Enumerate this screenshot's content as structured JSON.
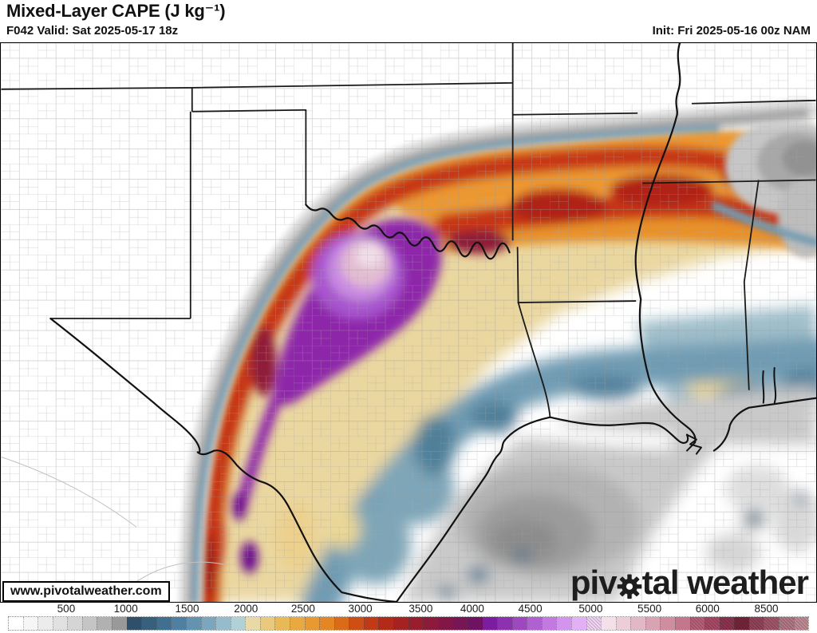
{
  "header": {
    "title": "Mixed-Layer CAPE (J kg⁻¹)",
    "valid": "F042 Valid: Sat 2025-05-17 18z",
    "init": "Init: Fri 2025-05-16 00z NAM"
  },
  "map": {
    "watermark": "www.pivotalweather.com",
    "logo_pre": "piv",
    "logo_post": "tal weather"
  },
  "colorbar": {
    "unit": "J kg⁻¹",
    "ticks": [
      {
        "label": "500",
        "pos": 8.1
      },
      {
        "label": "1000",
        "pos": 15.4
      },
      {
        "label": "1500",
        "pos": 22.9
      },
      {
        "label": "2000",
        "pos": 30.1
      },
      {
        "label": "2500",
        "pos": 37.1
      },
      {
        "label": "3000",
        "pos": 44.1
      },
      {
        "label": "3500",
        "pos": 51.5
      },
      {
        "label": "4000",
        "pos": 57.8
      },
      {
        "label": "4500",
        "pos": 64.9
      },
      {
        "label": "5000",
        "pos": 72.3
      },
      {
        "label": "5500",
        "pos": 79.5
      },
      {
        "label": "6000",
        "pos": 86.6
      },
      {
        "label": "8500",
        "pos": 93.8
      }
    ],
    "segments": [
      {
        "c": "#ffffff",
        "h": 0
      },
      {
        "c": "#f6f6f6",
        "h": 0
      },
      {
        "c": "#ececec",
        "h": 0
      },
      {
        "c": "#e1e1e1",
        "h": 0
      },
      {
        "c": "#d5d5d5",
        "h": 0
      },
      {
        "c": "#c5c5c5",
        "h": 0
      },
      {
        "c": "#b1b1b1",
        "h": 0
      },
      {
        "c": "#999999",
        "h": 0
      },
      {
        "c": "#2f5068",
        "h": 0
      },
      {
        "c": "#36607c",
        "h": 0
      },
      {
        "c": "#406f90",
        "h": 0
      },
      {
        "c": "#5080a1",
        "h": 0
      },
      {
        "c": "#6492af",
        "h": 0
      },
      {
        "c": "#7ba6bd",
        "h": 0
      },
      {
        "c": "#96bccb",
        "h": 0
      },
      {
        "c": "#b2d1d6",
        "h": 0
      },
      {
        "c": "#e9d9a4",
        "h": 0
      },
      {
        "c": "#e9c97c",
        "h": 0
      },
      {
        "c": "#e9b957",
        "h": 0
      },
      {
        "c": "#e9a941",
        "h": 0
      },
      {
        "c": "#e89932",
        "h": 0
      },
      {
        "c": "#e38623",
        "h": 0
      },
      {
        "c": "#da6c19",
        "h": 0
      },
      {
        "c": "#cf4e16",
        "h": 0
      },
      {
        "c": "#c13a16",
        "h": 0
      },
      {
        "c": "#b22b19",
        "h": 0
      },
      {
        "c": "#a42322",
        "h": 0
      },
      {
        "c": "#981e2d",
        "h": 0
      },
      {
        "c": "#8c1a3a",
        "h": 0
      },
      {
        "c": "#821747",
        "h": 0
      },
      {
        "c": "#781554",
        "h": 0
      },
      {
        "c": "#6f1262",
        "h": 0
      },
      {
        "c": "#7b1d9e",
        "h": 0
      },
      {
        "c": "#8c31af",
        "h": 0
      },
      {
        "c": "#9e48c0",
        "h": 0
      },
      {
        "c": "#b160d2",
        "h": 0
      },
      {
        "c": "#c27ae0",
        "h": 0
      },
      {
        "c": "#d294ec",
        "h": 0
      },
      {
        "c": "#e2b0f4",
        "h": 0
      },
      {
        "c": "#f0d4f4",
        "h": 1
      },
      {
        "c": "#f3e0ea",
        "h": 0
      },
      {
        "c": "#eccdd8",
        "h": 0
      },
      {
        "c": "#e3b8c6",
        "h": 0
      },
      {
        "c": "#d9a3b3",
        "h": 0
      },
      {
        "c": "#cf8da0",
        "h": 0
      },
      {
        "c": "#c4778c",
        "h": 0
      },
      {
        "c": "#b66079",
        "h": 1
      },
      {
        "c": "#a84a65",
        "h": 1
      },
      {
        "c": "#8c3350",
        "h": 1
      },
      {
        "c": "#722539",
        "h": 1
      },
      {
        "c": "#8f4459",
        "h": 1
      },
      {
        "c": "#9f5768",
        "h": 1
      },
      {
        "c": "#b07784",
        "h": 1
      },
      {
        "c": "#bd8c95",
        "h": 1
      }
    ]
  },
  "colors": {
    "state_border": "#1a1a1a",
    "county_line": "#9a9a9a",
    "cape_max_core": "#f1dee8",
    "cape_purple": "#8e27aa",
    "cape_red": "#c63517",
    "cape_orange": "#ec9830",
    "cape_teal": "#6f9bb3",
    "low_cape_gray": "#c9c9c9"
  }
}
